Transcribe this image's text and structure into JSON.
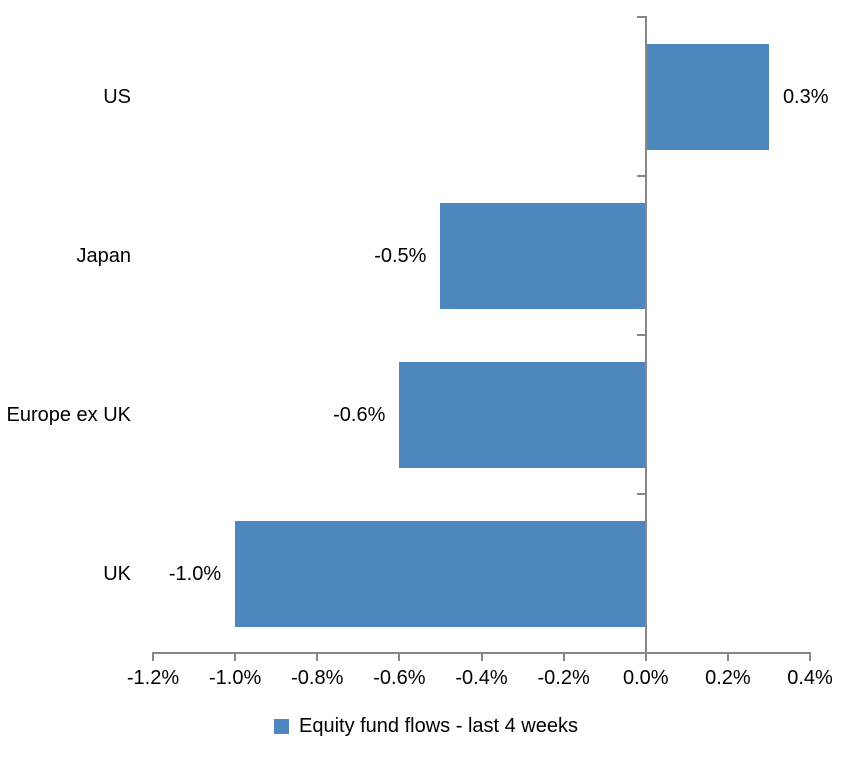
{
  "chart_data": {
    "type": "bar",
    "orientation": "horizontal",
    "title": "",
    "categories": [
      "US",
      "Japan",
      "Europe ex UK",
      "UK"
    ],
    "values": [
      0.3,
      -0.5,
      -0.6,
      -1.0
    ],
    "data_labels": [
      "0.3%",
      "-0.5%",
      "-0.6%",
      "-1.0%"
    ],
    "x_ticks": [
      -1.2,
      -1.0,
      -0.8,
      -0.6,
      -0.4,
      -0.2,
      0.0,
      0.2,
      0.4
    ],
    "x_tick_labels": [
      "-1.2%",
      "-1.0%",
      "-0.8%",
      "-0.6%",
      "-0.4%",
      "-0.2%",
      "0.0%",
      "0.2%",
      "0.4%"
    ],
    "xlim": [
      -1.2,
      0.4
    ],
    "grid": false,
    "legend_position": "bottom",
    "legend": "Equity fund flows - last 4 weeks",
    "bar_color": "#4E86BE",
    "axis_color": "#878787",
    "text_color": "#000000",
    "background_color": "#FFFFFF"
  }
}
